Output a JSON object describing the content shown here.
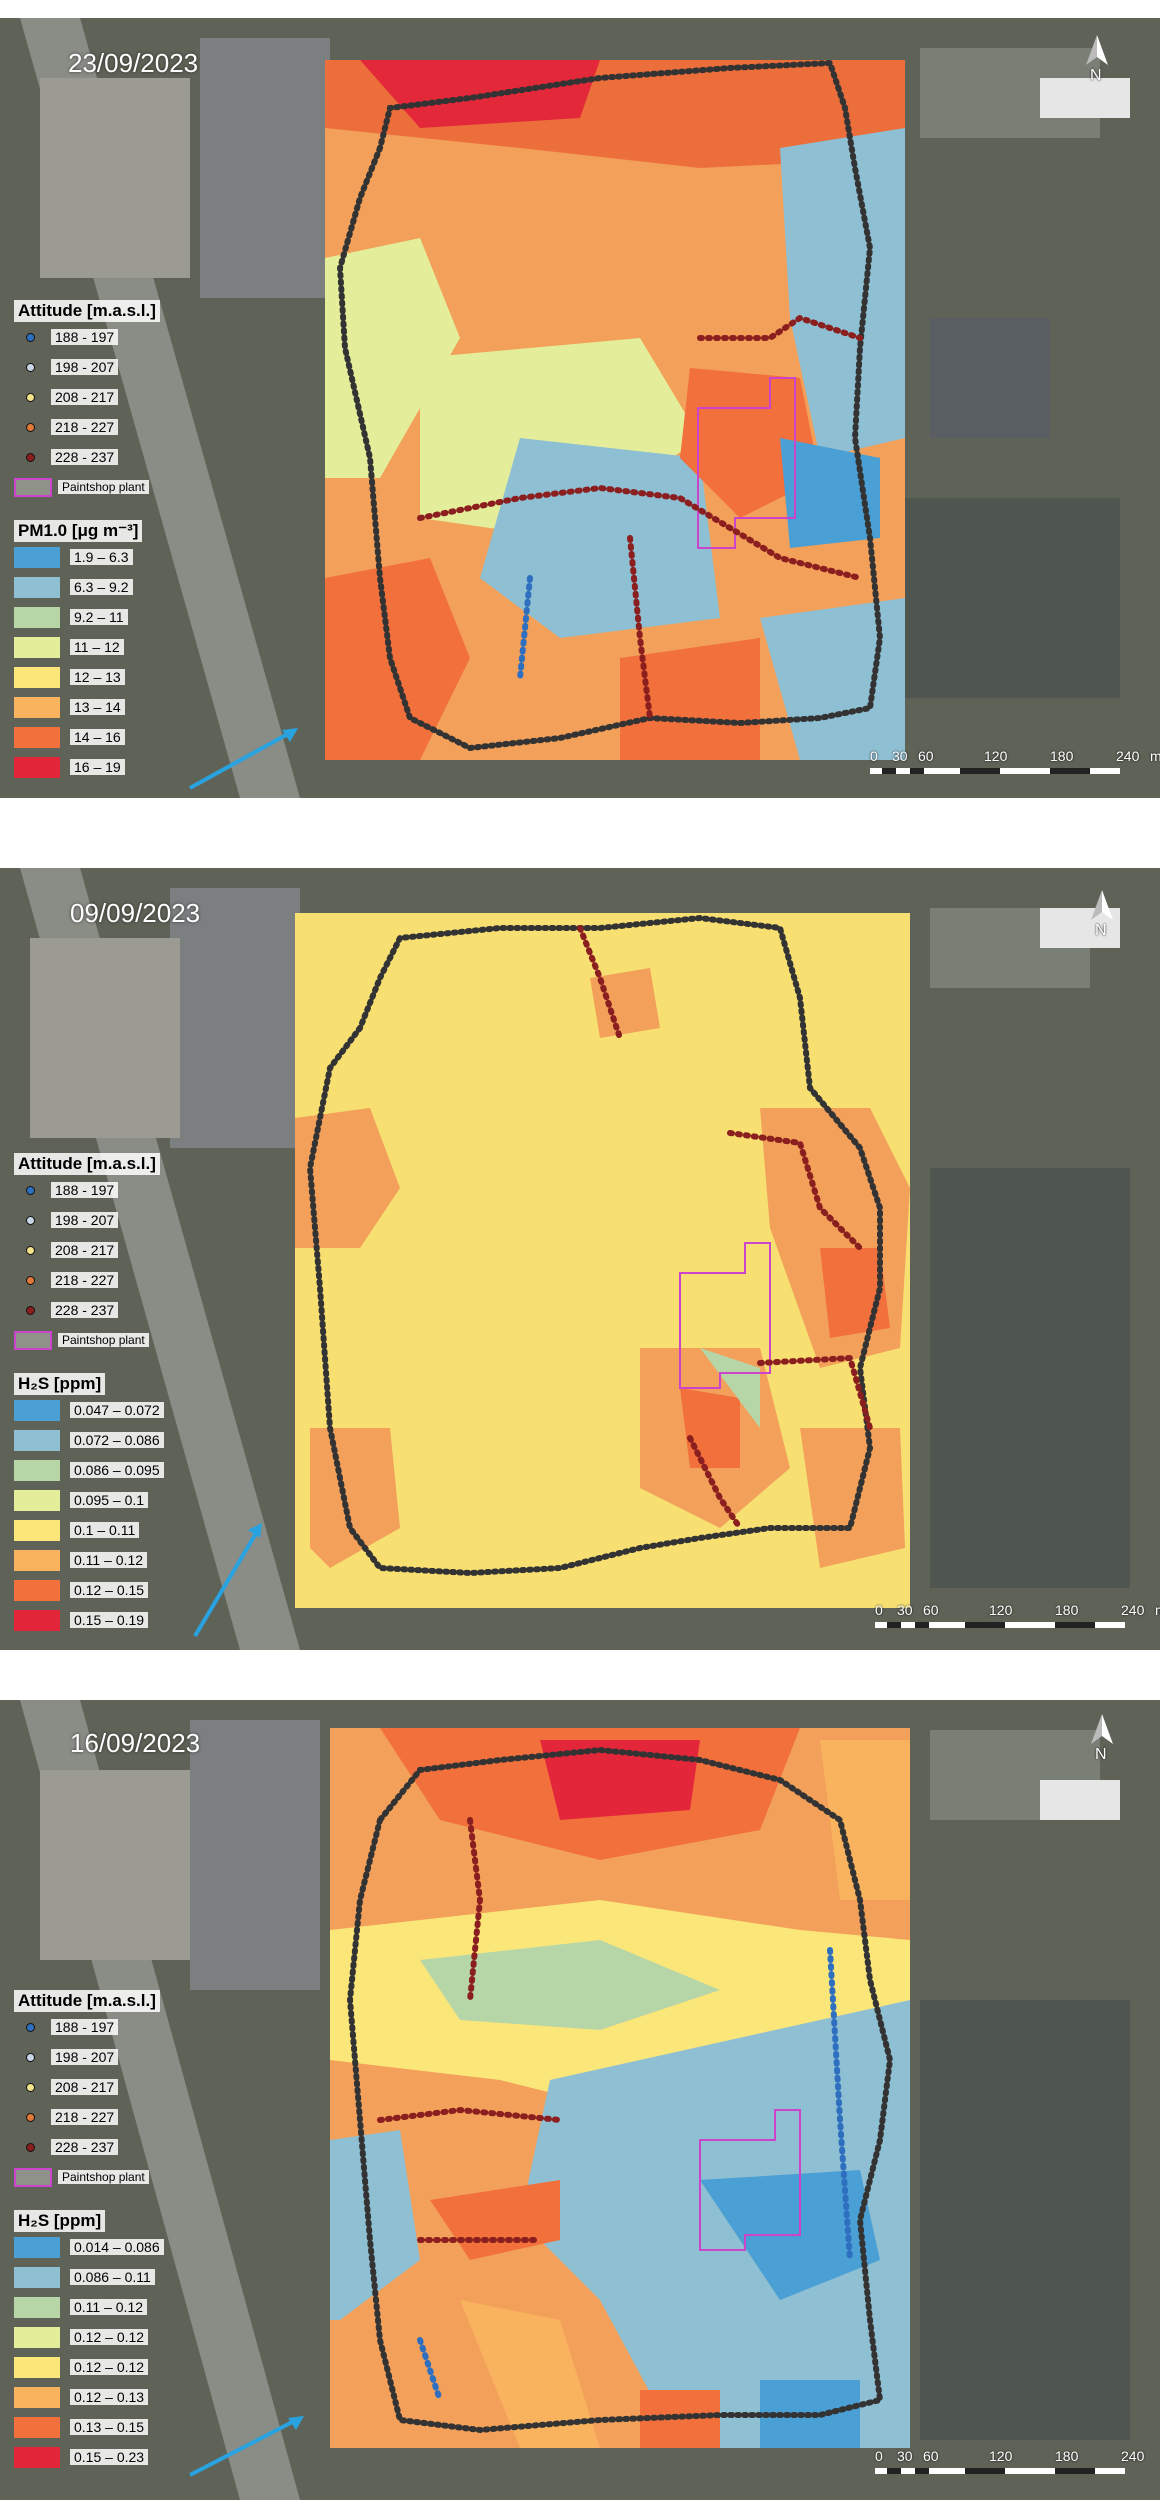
{
  "shared": {
    "altitude_title": "Attitude [m.a.s.l.]",
    "altitude_classes": [
      "188 - 197",
      "198 - 207",
      "208 - 217",
      "218 - 227",
      "228 - 237"
    ],
    "altitude_colors": [
      "#2e6fbf",
      "#c8d6e6",
      "#f2e28a",
      "#e0783a",
      "#8b1e1e"
    ],
    "plant_label": "Paintshop plant",
    "plant_color": "#cc44cc",
    "scale_labels": [
      "0",
      "30",
      "60",
      "120",
      "180",
      "240"
    ],
    "scale_unit": "m",
    "north_label": "N",
    "arrow_color": "#29a3e0"
  },
  "panels": [
    {
      "date": "23/09/2023",
      "variable_title": "PM1.0 [μg m⁻³]",
      "classes": [
        "1.9 – 6.3",
        "6.3 – 9.2",
        "9.2 – 11",
        "11 – 12",
        "12 – 13",
        "13 – 14",
        "14 – 16",
        "16 – 19"
      ],
      "colors": [
        "#4a9fd4",
        "#8fbfd2",
        "#b7d6a8",
        "#e4ee9a",
        "#fbe67a",
        "#f9b25e",
        "#f2703c",
        "#e3263a"
      ]
    },
    {
      "date": "09/09/2023",
      "variable_title": "H₂S [ppm]",
      "classes": [
        "0.047 – 0.072",
        "0.072 – 0.086",
        "0.086 – 0.095",
        "0.095 – 0.1",
        "0.1 – 0.11",
        "0.11 – 0.12",
        "0.12 – 0.15",
        "0.15 – 0.19"
      ],
      "colors": [
        "#4a9fd4",
        "#8fbfd2",
        "#b7d6a8",
        "#e4ee9a",
        "#fbe67a",
        "#f9b25e",
        "#f2703c",
        "#e3263a"
      ]
    },
    {
      "date": "16/09/2023",
      "variable_title": "H₂S [ppm]",
      "classes": [
        "0.014 – 0.086",
        "0.086 – 0.11",
        "0.11 – 0.12",
        "0.12 – 0.12",
        "0.12 – 0.12",
        "0.12 – 0.13",
        "0.13 – 0.15",
        "0.15 – 0.23"
      ],
      "colors": [
        "#4a9fd4",
        "#8fbfd2",
        "#b7d6a8",
        "#e4ee9a",
        "#fbe67a",
        "#f9b25e",
        "#f2703c",
        "#e3263a"
      ]
    }
  ]
}
